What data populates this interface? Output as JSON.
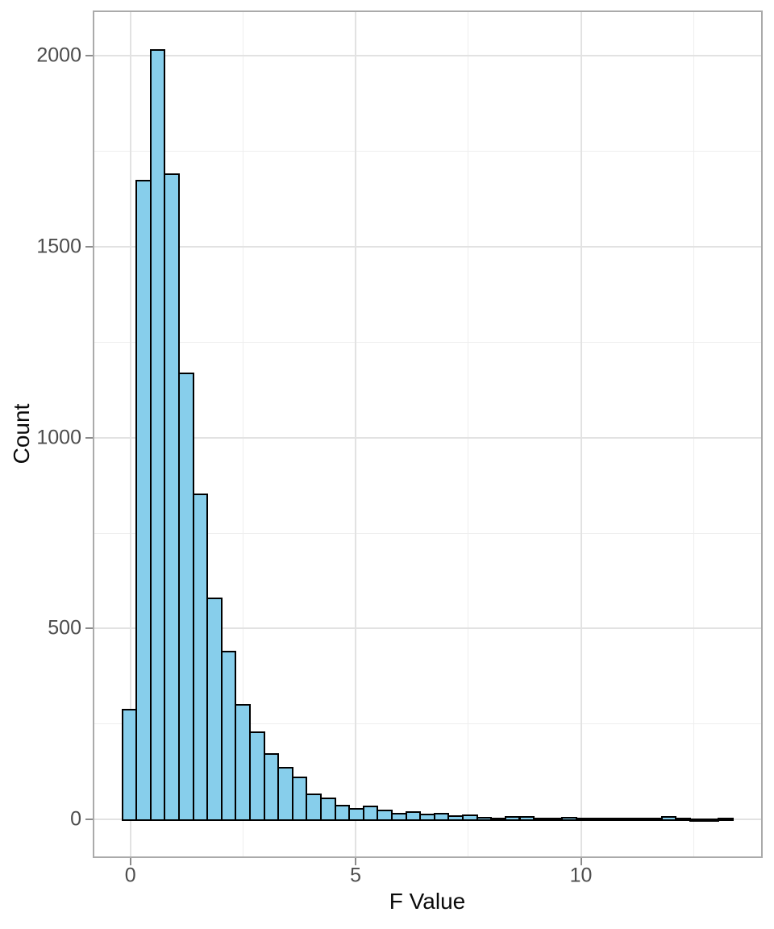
{
  "chart_data": {
    "type": "bar",
    "subtype": "histogram",
    "title": "",
    "xlabel": "F Value",
    "ylabel": "Count",
    "x_ticks": [
      0,
      5,
      10
    ],
    "x_minor_ticks": [
      2.5,
      7.5,
      12.5
    ],
    "y_ticks": [
      0,
      500,
      1000,
      1500,
      2000
    ],
    "y_minor_ticks": [
      250,
      750,
      1250,
      1750
    ],
    "x_range": [
      -0.835,
      14.035
    ],
    "y_range": [
      -101,
      2119
    ],
    "xlim_data": [
      -0.18,
      13.37
    ],
    "ylim": [
      0,
      2016
    ],
    "grid": true,
    "legend_position": "none",
    "bin_start": -0.18,
    "bin_width": 0.315,
    "counts": [
      287,
      1673,
      2016,
      1690,
      1169,
      852,
      580,
      440,
      300,
      229,
      171,
      136,
      110,
      66,
      55,
      37,
      27,
      34,
      23,
      16,
      20,
      14,
      15,
      8,
      10,
      5,
      2,
      6,
      6,
      3,
      2,
      4,
      2,
      3,
      2,
      3,
      2,
      3,
      7,
      3,
      1,
      1,
      2
    ],
    "colors": {
      "bar_fill": "#87CEEB",
      "bar_stroke": "#000000",
      "grid_major": "#e2e2e2",
      "grid_minor": "#eeeeee",
      "panel_border": "#aaaaaa",
      "tick_mark": "#8c8c8c",
      "tick_label": "#4d4d4d",
      "axis_title": "#0a0a0a",
      "background": "#ffffff"
    }
  }
}
